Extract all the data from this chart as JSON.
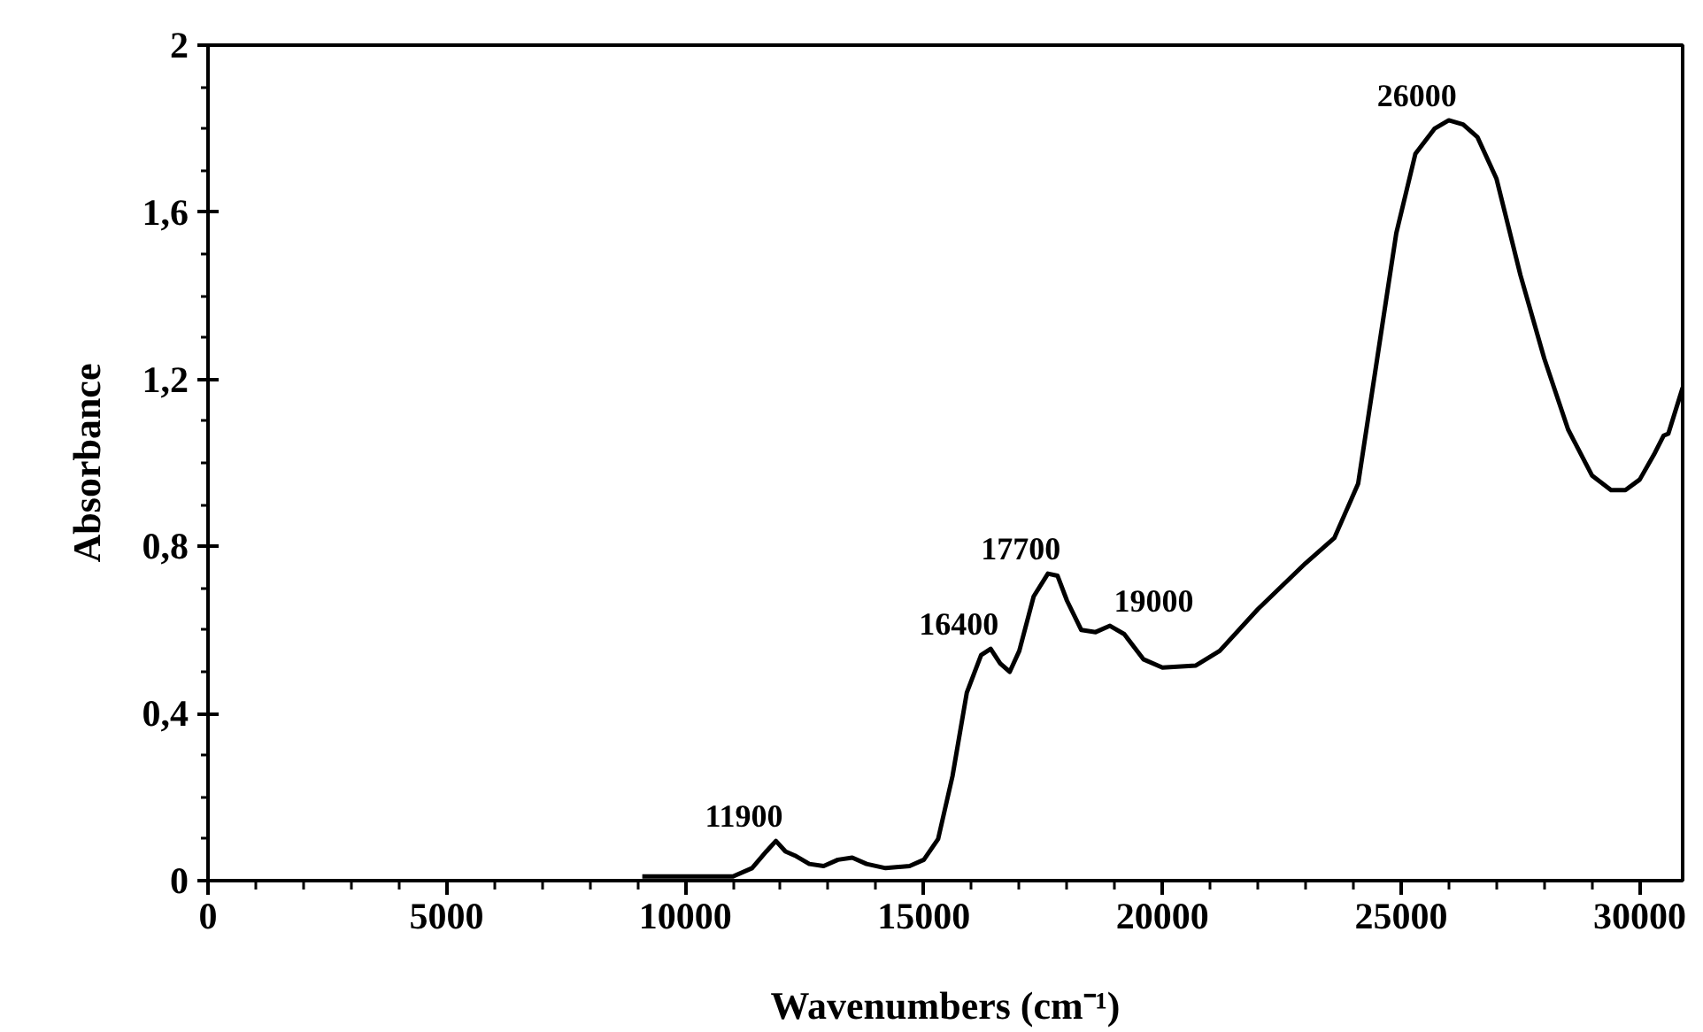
{
  "chart_data": {
    "type": "line",
    "xlabel": "Wavenumbers (cm⁻¹)",
    "ylabel": "Absorbance",
    "x": [
      9100,
      10000,
      11000,
      11400,
      11700,
      11900,
      12100,
      12300,
      12600,
      12900,
      13200,
      13500,
      13800,
      14200,
      14700,
      15000,
      15300,
      15600,
      15900,
      16200,
      16400,
      16600,
      16800,
      17000,
      17300,
      17600,
      17800,
      18000,
      18300,
      18600,
      18900,
      19200,
      19600,
      20000,
      20700,
      21200,
      22000,
      23000,
      23600,
      24100,
      24500,
      24900,
      25300,
      25700,
      26000,
      26300,
      26600,
      27000,
      27500,
      28000,
      28500,
      29000,
      29400,
      29700,
      30000,
      30300,
      30500,
      30600,
      30900
    ],
    "series": [
      {
        "color": "#000000",
        "values": [
          0.01,
          0.01,
          0.01,
          0.03,
          0.07,
          0.095,
          0.07,
          0.06,
          0.04,
          0.035,
          0.05,
          0.055,
          0.04,
          0.03,
          0.035,
          0.05,
          0.1,
          0.25,
          0.45,
          0.54,
          0.555,
          0.52,
          0.5,
          0.55,
          0.68,
          0.735,
          0.73,
          0.67,
          0.6,
          0.595,
          0.61,
          0.59,
          0.53,
          0.51,
          0.515,
          0.55,
          0.65,
          0.76,
          0.82,
          0.95,
          1.25,
          1.55,
          1.74,
          1.8,
          1.82,
          1.81,
          1.78,
          1.68,
          1.45,
          1.25,
          1.08,
          0.97,
          0.935,
          0.935,
          0.96,
          1.02,
          1.065,
          1.07,
          1.18
        ]
      }
    ],
    "xlim": [
      0,
      30900
    ],
    "xticks": [
      0,
      5000,
      10000,
      15000,
      20000,
      25000,
      30000
    ],
    "ylim": [
      0,
      2
    ],
    "yticks": [
      0,
      {
        "value": 0.4,
        "label": "0,4"
      },
      {
        "value": 0.8,
        "label": "0,8"
      },
      {
        "value": 1.2,
        "label": "1,2"
      },
      {
        "value": 1.6,
        "label": "1,6"
      },
      2
    ],
    "annotations": [
      {
        "text": "11900",
        "x": 11900,
        "y": 0.095
      },
      {
        "text": "16400",
        "x": 16400,
        "y": 0.555
      },
      {
        "text": "17700",
        "x": 17700,
        "y": 0.735
      },
      {
        "text": "19000",
        "x": 19000,
        "y": 0.61
      },
      {
        "text": "26000",
        "x": 26000,
        "y": 1.82
      }
    ],
    "grid": false,
    "marker": "none",
    "line_style": "solid"
  }
}
